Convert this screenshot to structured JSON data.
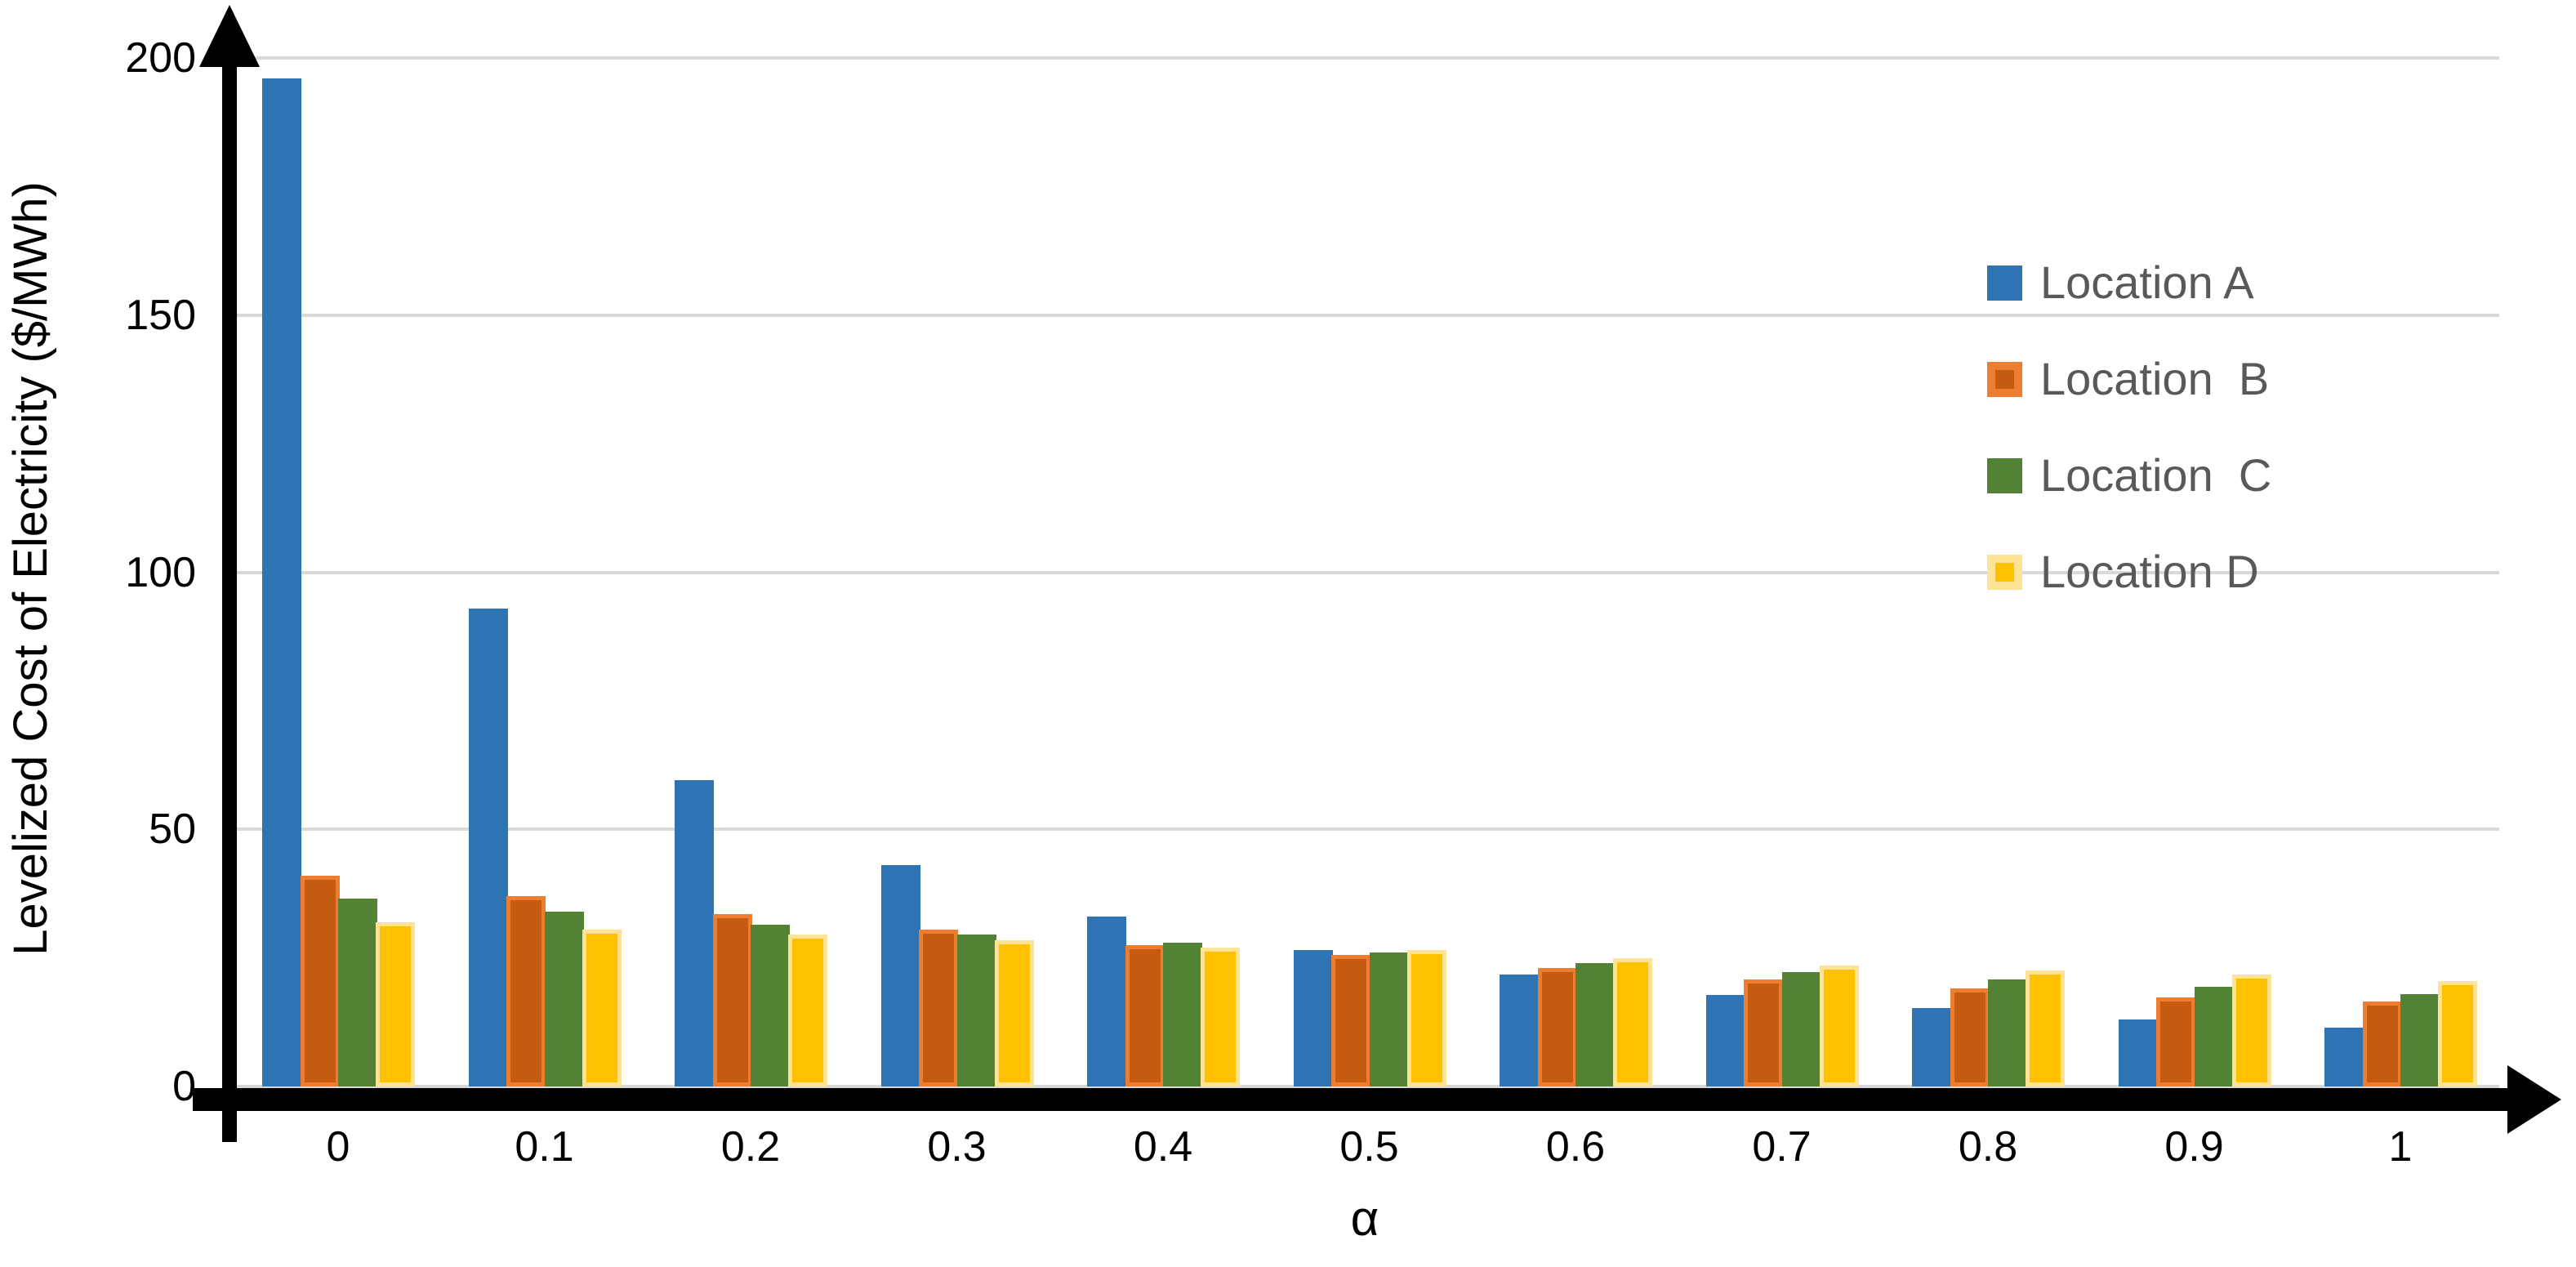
{
  "chart_data": {
    "type": "bar",
    "title": "",
    "xlabel": "α",
    "ylabel": "Levelized Cost of Electricity ($/MWh)",
    "ylim": [
      0,
      200
    ],
    "y_ticks": [
      0,
      50,
      100,
      150,
      200
    ],
    "gridlines": [
      50,
      100,
      150,
      200
    ],
    "grid": "horizontal",
    "legend_position": "inside-right",
    "categories": [
      "0",
      "0.1",
      "0.2",
      "0.3",
      "0.4",
      "0.5",
      "0.6",
      "0.7",
      "0.8",
      "0.9",
      "1"
    ],
    "series": [
      {
        "name": "Location A",
        "fill": "#2E74B5",
        "border": null,
        "values": [
          196,
          93,
          59.5,
          43,
          33,
          26.5,
          21.7,
          17.8,
          15.2,
          13,
          11.5
        ]
      },
      {
        "name": "Location  B",
        "fill": "#C55A11",
        "border": "#ED7D31",
        "values": [
          41,
          37,
          33.5,
          30.5,
          27.5,
          25.5,
          23,
          20.8,
          19,
          17.3,
          16.5
        ]
      },
      {
        "name": "Location  C",
        "fill": "#548235",
        "border": null,
        "values": [
          36.5,
          34,
          31.5,
          29.5,
          28,
          26,
          24,
          22.2,
          20.8,
          19.4,
          18
        ]
      },
      {
        "name": "Location D",
        "fill": "#FFC000",
        "border": "#FFE394",
        "values": [
          32,
          30.5,
          29.5,
          28.5,
          27,
          26.5,
          25,
          23.5,
          22.5,
          21.8,
          20.5
        ]
      }
    ],
    "colors": {
      "gridline": "#D9D9D9",
      "axis": "#000000",
      "tick_text": "#000000",
      "legend_text": "#595959"
    }
  }
}
